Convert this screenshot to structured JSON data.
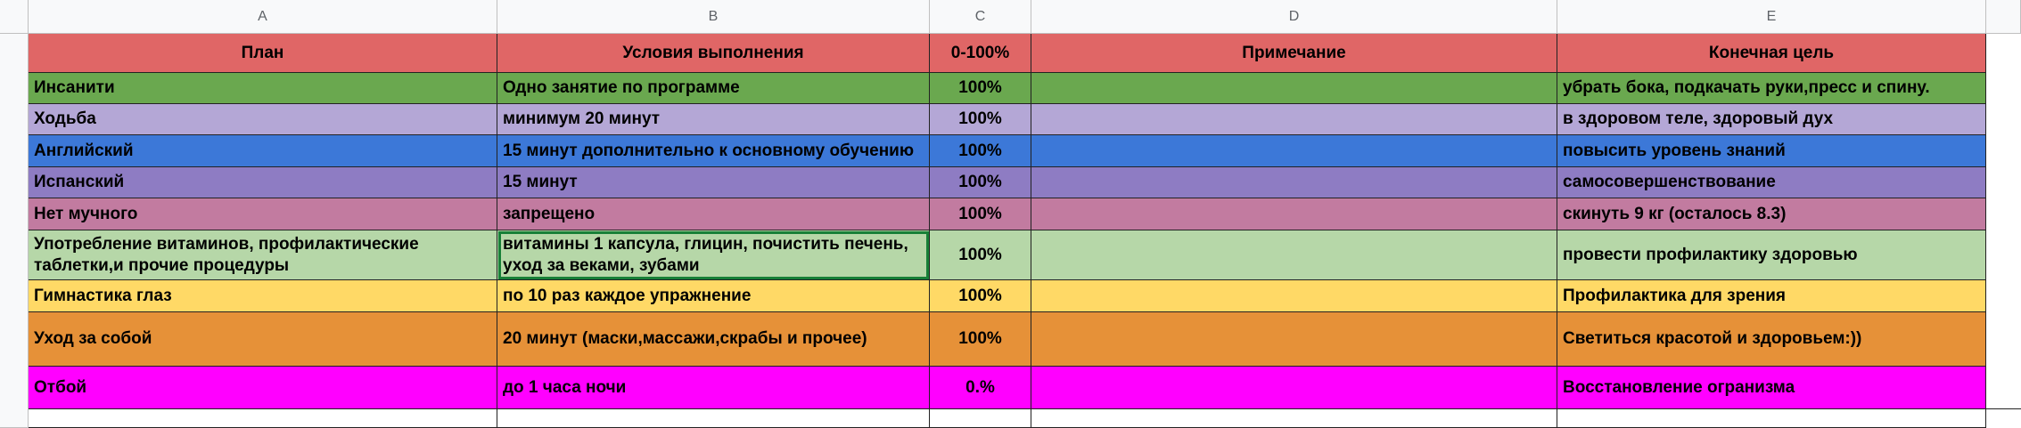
{
  "columns": [
    "A",
    "B",
    "C",
    "D",
    "E"
  ],
  "header": {
    "plan": "План",
    "condition": "Условия выполнения",
    "percent": "0-100%",
    "note": "Примечание",
    "goal": "Конечная цель",
    "color": "#e06666"
  },
  "rows": [
    {
      "plan": "Инсанити",
      "condition": "Одно занятие по программе",
      "percent": "100%",
      "goal": "убрать бока, подкачать руки,пресс и спину.",
      "color": "#6aa84f"
    },
    {
      "plan": "Ходьба",
      "condition": "минимум 20 минут",
      "percent": "100%",
      "goal": "в здоровом теле, здоровый дух",
      "color": "#b4a7d6"
    },
    {
      "plan": "Английский",
      "condition": "15 минут дополнительно к основному обучению",
      "percent": "100%",
      "goal": "повысить уровень знаний",
      "color": "#3c78d8"
    },
    {
      "plan": "Испанский",
      "condition": "15 минут",
      "percent": "100%",
      "goal": "самосовершенствование",
      "color": "#8e7cc3"
    },
    {
      "plan": "Нет мучного",
      "condition": "запрещено",
      "percent": "100%",
      "goal": "скинуть 9 кг (осталось 8.3)",
      "color": "#c27ba0"
    },
    {
      "plan": "Употребление витаминов, профилактические таблетки,и прочие процедуры",
      "condition": "витамины 1 капсула, глицин, почистить печень, уход за веками, зубами",
      "percent": "100%",
      "goal": "провести профилактику здоровью",
      "color": "#b6d7a8"
    },
    {
      "plan": "Гимнастика глаз",
      "condition": "по 10 раз каждое упражнение",
      "percent": "100%",
      "goal": "Профилактика для зрения",
      "color": "#ffd966"
    },
    {
      "plan": "Уход за собой",
      "condition": "20 минут (маски,массажи,скрабы и прочее)",
      "percent": "100%",
      "goal": "Светиться красотой и здоровьем:))",
      "color": "#e69138"
    },
    {
      "plan": "Отбой",
      "condition": "до 1 часа ночи",
      "percent": "0.%",
      "goal": "Восстановление огранизма",
      "color": "#ff00ff"
    }
  ]
}
